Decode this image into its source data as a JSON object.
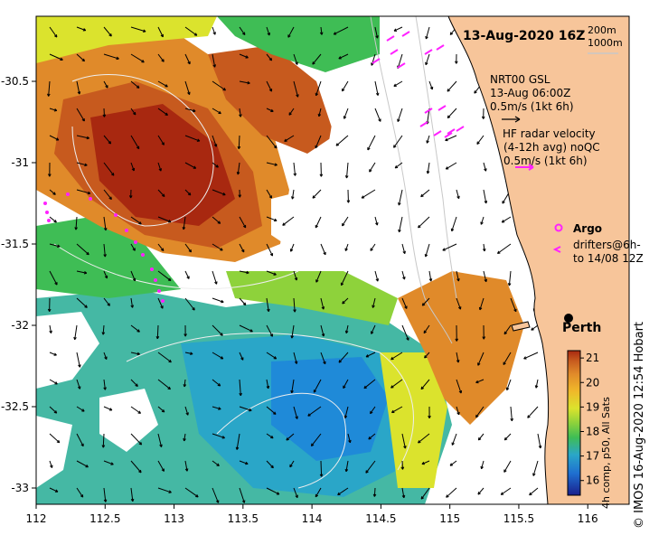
{
  "title": "13-Aug-2020 16Z",
  "depth_legend": [
    "200m",
    "1000m"
  ],
  "model_legend": {
    "name": "NRT00 GSL",
    "time": "13-Aug 06:00Z",
    "scale": "0.5m/s (1kt 6h)"
  },
  "radar_legend": {
    "line1": "HF radar velocity",
    "line2": "(4-12h avg) noQC",
    "scale": "0.5m/s (1kt 6h)"
  },
  "argo_label": "Argo",
  "drifter_label": [
    "drifters@6h-",
    "to 14/08 12Z"
  ],
  "city": "Perth",
  "colorbar": {
    "title": "4h comp, p50, All Sats",
    "ticks": [
      "21",
      "20",
      "19",
      "18",
      "17",
      "16"
    ],
    "values": [
      21,
      20,
      19,
      18,
      17,
      16
    ],
    "range": [
      15.4,
      21.3
    ]
  },
  "x_axis": {
    "ticks": [
      "112",
      "112.5",
      "113",
      "113.5",
      "114",
      "114.5",
      "115",
      "115.5",
      "116"
    ],
    "values": [
      112,
      112.5,
      113,
      113.5,
      114,
      114.5,
      115,
      115.5,
      116
    ],
    "range": [
      112,
      116.3
    ]
  },
  "y_axis": {
    "ticks": [
      "-30.5",
      "-31",
      "-31.5",
      "-32",
      "-32.5",
      "-33"
    ],
    "values": [
      -30.5,
      -31,
      -31.5,
      -32,
      -32.5,
      -33
    ],
    "range": [
      -30.1,
      -33.1
    ]
  },
  "credit": "© IMOS 16-Aug-2020 12:54 Hobart",
  "colors": {
    "land": "#f7c59a",
    "sst_scale": [
      "#1a1f8c",
      "#1f6fd0",
      "#2aa6c8",
      "#45b8a4",
      "#3fbd55",
      "#8ed23b",
      "#dbe32d",
      "#f0b82a",
      "#e08a2a",
      "#c75a1e",
      "#a82810"
    ],
    "current_arrow": "#000000",
    "radar_arrow": "#ff22ff"
  }
}
